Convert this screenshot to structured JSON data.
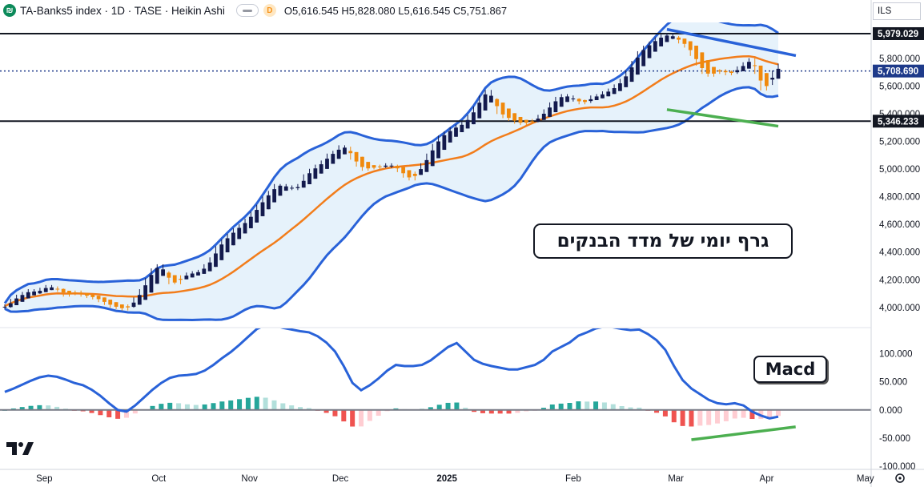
{
  "header": {
    "title": "TA-Banks5 index · 1D · TASE · Heikin Ashi",
    "badge": "D",
    "ohlc": "O5,616.545 H5,828.080 L5,616.545 C5,751.867"
  },
  "currency": "ILS",
  "annotations": {
    "hebrew_title": "גרף יומי של מדד הבנקים",
    "macd_label": "Macd"
  },
  "price_tags": [
    {
      "value": "5,979.029",
      "color": "#131722"
    },
    {
      "value": "5,708.690",
      "color": "#1e3a8a"
    },
    {
      "value": "5,346.233",
      "color": "#131722"
    }
  ],
  "colors": {
    "up_candle": "#131a4d",
    "down_candle": "#f0890c",
    "bollinger": "#2962d8",
    "bb_fill": "#e3f1fb",
    "mid_ma": "#f27d1b",
    "macd_line": "#2962d8",
    "hist_pos_strong": "#26a69a",
    "hist_pos_weak": "#b2dfdb",
    "hist_neg_strong": "#ef5350",
    "hist_neg_weak": "#ffcdd2",
    "trend_top": "#2962d8",
    "trend_bottom": "#4caf50"
  },
  "chart_data": [
    {
      "type": "candlestick",
      "title": "TA-Banks5 index · 1D · TASE · Heikin Ashi",
      "x_tick_labels": [
        "Sep",
        "Oct",
        "Nov",
        "Dec",
        "2025",
        "Feb",
        "Mar",
        "Apr",
        "May"
      ],
      "y_tick_labels": [
        "4,000.000",
        "4,200.000",
        "4,400.000",
        "4,600.000",
        "4,800.000",
        "5,000.000",
        "5,200.000",
        "5,400.000",
        "5,600.000",
        "5,800.000"
      ],
      "ylim": [
        3860,
        6060
      ],
      "horizontal_levels": [
        5979.029,
        5346.233
      ],
      "last_price": 5708.69,
      "overlays": [
        "Bollinger Bands (upper, basis, lower)"
      ],
      "closes": [
        4010,
        4050,
        4080,
        4100,
        4120,
        4110,
        4130,
        4150,
        4140,
        4125,
        4090,
        4100,
        4110,
        4090,
        4080,
        4070,
        4050,
        4030,
        4010,
        4000,
        3990,
        4010,
        4060,
        4120,
        4200,
        4270,
        4300,
        4250,
        4180,
        4180,
        4220,
        4240,
        4250,
        4260,
        4300,
        4350,
        4430,
        4480,
        4520,
        4560,
        4590,
        4630,
        4680,
        4730,
        4790,
        4830,
        4880,
        4880,
        4870,
        4860,
        4880,
        4950,
        4990,
        5020,
        5050,
        5100,
        5120,
        5160,
        5150,
        5080,
        5030,
        5000,
        5010,
        5010,
        5020,
        5030,
        5020,
        4990,
        4950,
        4930,
        4970,
        5030,
        5100,
        5170,
        5230,
        5260,
        5290,
        5310,
        5330,
        5380,
        5440,
        5520,
        5560,
        5500,
        5410,
        5380,
        5360,
        5340,
        5330,
        5340,
        5350,
        5380,
        5420,
        5470,
        5510,
        5530,
        5520,
        5500,
        5480,
        5490,
        5520,
        5530,
        5550,
        5570,
        5600,
        5640,
        5700,
        5770,
        5840,
        5880,
        5910,
        5940,
        5960,
        5970,
        5950,
        5920,
        5890,
        5830,
        5760,
        5700,
        5680,
        5700,
        5710,
        5690,
        5700,
        5730,
        5760,
        5790,
        5700,
        5580,
        5620,
        5700,
        5750
      ]
    },
    {
      "type": "macd",
      "y_tick_labels": [
        "100.000",
        "50.000",
        "0.000",
        "-50.000",
        "-100.000"
      ],
      "ylim": [
        -100,
        145
      ],
      "macd_line": [
        32,
        38,
        45,
        52,
        58,
        61,
        59,
        54,
        48,
        44,
        36,
        25,
        12,
        0,
        -3,
        8,
        22,
        36,
        48,
        57,
        61,
        62,
        64,
        70,
        80,
        92,
        103,
        116,
        130,
        144,
        151,
        150,
        146,
        143,
        140,
        138,
        131,
        120,
        104,
        78,
        48,
        35,
        44,
        56,
        70,
        80,
        78,
        78,
        80,
        88,
        100,
        112,
        119,
        104,
        89,
        82,
        78,
        75,
        72,
        72,
        76,
        80,
        89,
        104,
        112,
        120,
        132,
        138,
        145,
        148,
        147,
        144,
        142,
        143,
        135,
        124,
        107,
        78,
        53,
        38,
        28,
        18,
        12,
        10,
        12,
        8,
        -3,
        -10,
        -15,
        -12
      ]
    }
  ]
}
